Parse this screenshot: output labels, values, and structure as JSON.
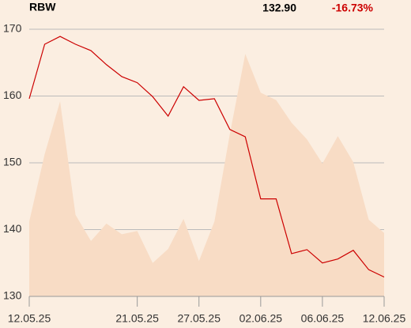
{
  "header": {
    "symbol": "RBW",
    "price": "132.90",
    "change": "-16.73%"
  },
  "chart_data": {
    "type": "line",
    "categories": [
      "12.05.25",
      null,
      null,
      null,
      null,
      null,
      null,
      "21.05.25",
      null,
      null,
      null,
      "27.05.25",
      null,
      null,
      null,
      "02.06.25",
      null,
      null,
      null,
      "06.06.25",
      null,
      null,
      null,
      "12.06.25"
    ],
    "series": [
      {
        "type": "area",
        "color": "#f8dcc5",
        "values": [
          141.2,
          151.3,
          159.2,
          142.2,
          138.3,
          140.9,
          139.3,
          139.8,
          135.0,
          137.1,
          141.6,
          135.3,
          141.2,
          154.3,
          166.3,
          160.5,
          159.4,
          156.0,
          153.5,
          149.9,
          154.0,
          150.1,
          141.5,
          139.5
        ]
      },
      {
        "type": "line",
        "color": "#cc0000",
        "values": [
          159.6,
          167.75,
          168.93,
          167.75,
          166.8,
          164.7,
          162.9,
          162.0,
          159.9,
          157.0,
          161.4,
          159.35,
          159.6,
          155.0,
          153.9,
          144.6,
          144.6,
          136.4,
          137.0,
          135.0,
          135.6,
          136.9,
          134.0,
          132.9
        ]
      }
    ],
    "ylim": [
      130,
      170
    ],
    "yticks": [
      130,
      140,
      150,
      160,
      170
    ],
    "grid": true
  }
}
